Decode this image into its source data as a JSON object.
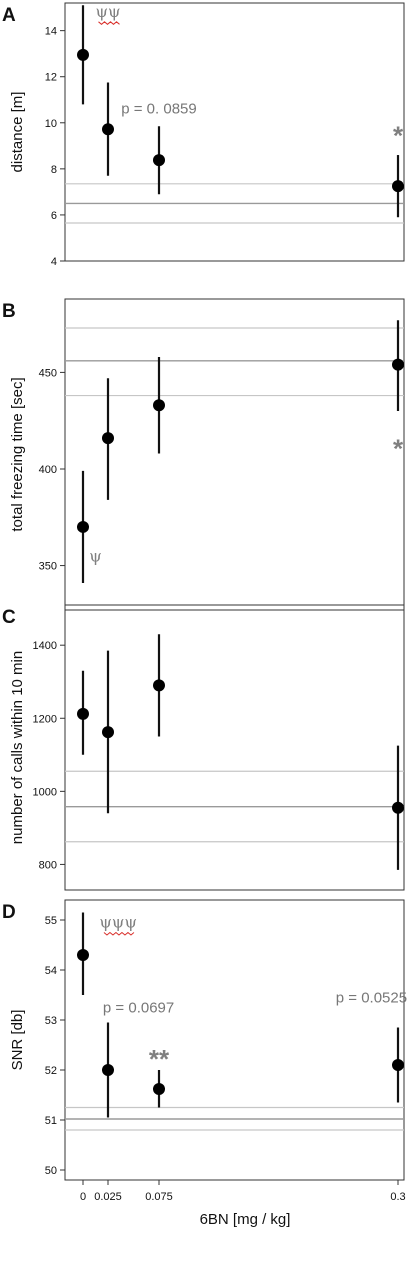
{
  "x_axis": {
    "label": "6BN [mg / kg]",
    "ticks": [
      0,
      0.025,
      0.075,
      0.3
    ],
    "tick_labels": [
      "0",
      "0.025",
      "0.075",
      "0.3"
    ]
  },
  "colors": {
    "points": "#000000",
    "reference_mid": "#9a9a9a",
    "reference_band": "#c6c6c6",
    "annotation": "#808080",
    "underline": "#d9302c"
  },
  "chart_data": [
    {
      "type": "scatter",
      "panel": "A",
      "ylabel": "distance [m]",
      "ylim": [
        4,
        15.2
      ],
      "yticks": [
        4,
        6,
        8,
        10,
        12,
        14
      ],
      "x": [
        0,
        0.025,
        0.075,
        0.3
      ],
      "series": [
        {
          "y": [
            12.95,
            9.72,
            8.38,
            7.25
          ],
          "lower": [
            10.8,
            7.7,
            6.9,
            5.9
          ],
          "upper": [
            15.1,
            11.75,
            9.85,
            8.6
          ]
        }
      ],
      "reference": {
        "mid": 6.5,
        "band": [
          5.65,
          7.35
        ]
      },
      "annotations": [
        {
          "text": "ψψ",
          "kind": "psi",
          "x": 0.025,
          "y": 14.6,
          "underline": true
        },
        {
          "text": "p = 0. 0859",
          "kind": "p",
          "x": 0.075,
          "y": 10.4
        },
        {
          "text": "*",
          "kind": "star",
          "x": 0.3,
          "y": 9.4
        }
      ]
    },
    {
      "type": "scatter",
      "panel": "B",
      "ylabel": "total freezing time [sec]",
      "ylim": [
        327,
        488
      ],
      "yticks": [
        350,
        400,
        450
      ],
      "x": [
        0,
        0.025,
        0.075,
        0.3
      ],
      "series": [
        {
          "y": [
            370,
            416,
            433,
            454
          ],
          "lower": [
            341,
            384,
            408,
            430
          ],
          "upper": [
            399,
            447,
            458,
            477
          ]
        }
      ],
      "reference": {
        "mid": 456,
        "band": [
          438,
          473
        ]
      },
      "annotations": [
        {
          "text": "*",
          "kind": "star",
          "x": 0.3,
          "y": 410
        },
        {
          "text": "ψ",
          "kind": "psi",
          "x": 0.0125,
          "y": 352,
          "underline": false
        }
      ]
    },
    {
      "type": "scatter",
      "panel": "C",
      "ylabel": "number of calls within 10 min",
      "ylim": [
        730,
        1510
      ],
      "yticks": [
        800,
        1000,
        1200,
        1400
      ],
      "x": [
        0,
        0.025,
        0.075,
        0.3
      ],
      "series": [
        {
          "y": [
            1212,
            1162,
            1290,
            955
          ],
          "lower": [
            1100,
            940,
            1150,
            785
          ],
          "upper": [
            1330,
            1385,
            1430,
            1125
          ]
        }
      ],
      "reference": {
        "mid": 958,
        "band": [
          862,
          1055
        ]
      },
      "annotations": []
    },
    {
      "type": "scatter",
      "panel": "D",
      "ylabel": "SNR [db]",
      "ylim": [
        49.8,
        55.4
      ],
      "yticks": [
        50,
        51,
        52,
        53,
        54,
        55
      ],
      "x": [
        0,
        0.025,
        0.075,
        0.3
      ],
      "series": [
        {
          "y": [
            54.3,
            52.0,
            51.62,
            52.1
          ],
          "lower": [
            53.5,
            51.05,
            51.25,
            51.35
          ],
          "upper": [
            55.15,
            52.95,
            52.0,
            52.85
          ]
        }
      ],
      "reference": {
        "mid": 51.02,
        "band": [
          50.8,
          51.25
        ]
      },
      "annotations": [
        {
          "text": "ψψψ",
          "kind": "psi",
          "x": 0.035,
          "y": 54.85,
          "underline": true
        },
        {
          "text": "p = 0.0697",
          "kind": "p",
          "x": 0.055,
          "y": 53.15
        },
        {
          "text": "**",
          "kind": "star",
          "x": 0.075,
          "y": 52.2
        },
        {
          "text": "p = 0.0525",
          "kind": "p",
          "x": 0.275,
          "y": 53.35
        }
      ]
    }
  ]
}
